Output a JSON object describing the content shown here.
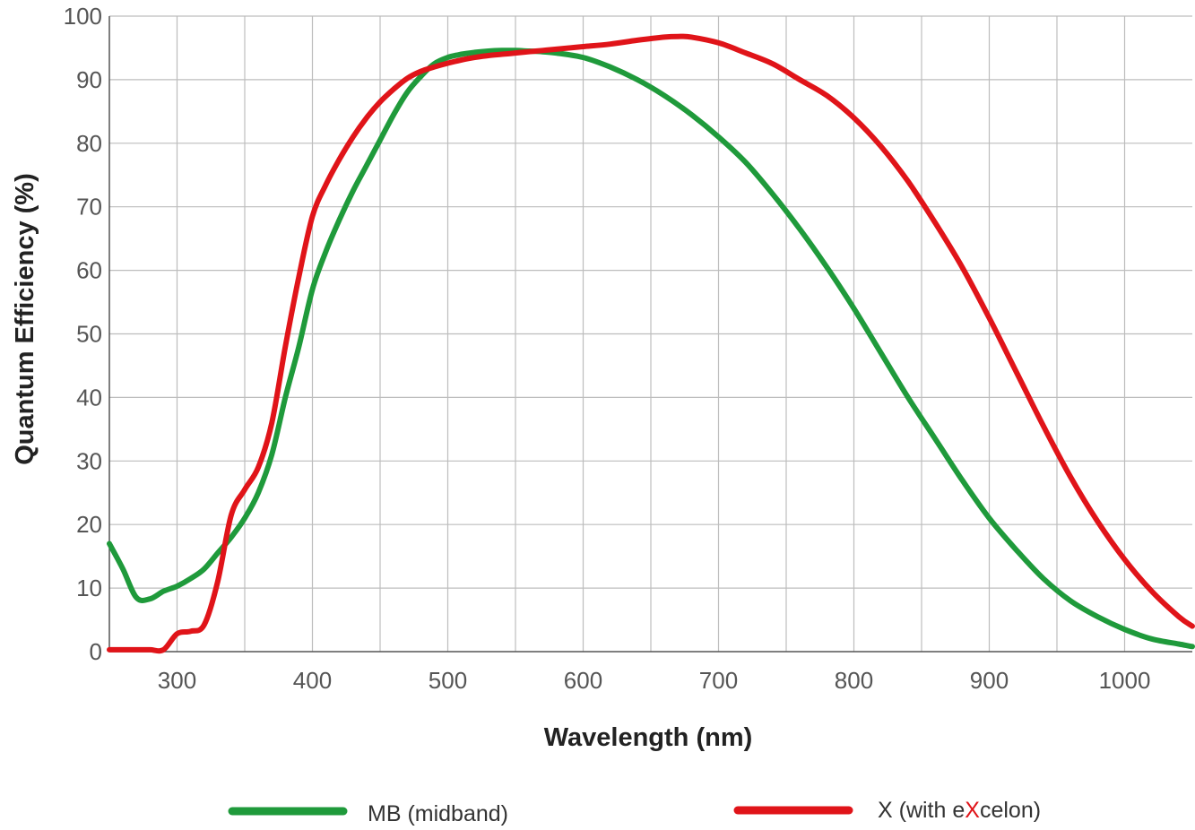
{
  "chart_data": {
    "type": "line",
    "xlabel": "Wavelength (nm)",
    "ylabel": "Quantum Efficiency  (%)",
    "xlim": [
      250,
      1050
    ],
    "ylim": [
      0,
      100
    ],
    "x_ticks": [
      300,
      400,
      500,
      600,
      700,
      800,
      900,
      1000
    ],
    "y_ticks": [
      0,
      10,
      20,
      30,
      40,
      50,
      60,
      70,
      80,
      90,
      100
    ],
    "x_grid_step": 50,
    "y_grid_step": 10,
    "grid": true,
    "legend_position": "bottom",
    "series": [
      {
        "name": "MB (midband)",
        "color": "#1f9a3b",
        "x": [
          250,
          260,
          270,
          280,
          290,
          300,
          310,
          320,
          330,
          340,
          350,
          360,
          370,
          380,
          390,
          400,
          410,
          420,
          430,
          440,
          450,
          460,
          470,
          480,
          490,
          500,
          510,
          520,
          530,
          540,
          550,
          560,
          570,
          580,
          600,
          620,
          640,
          660,
          680,
          700,
          720,
          740,
          760,
          780,
          800,
          820,
          840,
          860,
          880,
          900,
          920,
          940,
          960,
          980,
          1000,
          1020,
          1040,
          1050
        ],
        "y": [
          17,
          13,
          8.5,
          8.3,
          9.5,
          10.3,
          11.5,
          13,
          15.5,
          18,
          21,
          25,
          31,
          40,
          48,
          57,
          63,
          68,
          72.5,
          76.5,
          80.5,
          84.5,
          88,
          90.5,
          92.5,
          93.5,
          94,
          94.3,
          94.5,
          94.6,
          94.6,
          94.5,
          94.4,
          94.2,
          93.5,
          92,
          90,
          87.5,
          84.5,
          81,
          77,
          72,
          66.5,
          60.5,
          54,
          47,
          40,
          33.5,
          27,
          21,
          16,
          11.5,
          8,
          5.5,
          3.5,
          2,
          1.2,
          0.8
        ]
      },
      {
        "name": "X (with eXcelon)",
        "color": "#e01419",
        "x": [
          250,
          260,
          270,
          280,
          290,
          300,
          310,
          320,
          330,
          340,
          350,
          360,
          370,
          380,
          390,
          400,
          410,
          420,
          430,
          440,
          450,
          460,
          470,
          480,
          490,
          500,
          510,
          520,
          530,
          540,
          550,
          560,
          570,
          580,
          600,
          620,
          640,
          660,
          670,
          680,
          700,
          720,
          740,
          760,
          780,
          800,
          820,
          840,
          860,
          880,
          900,
          920,
          940,
          960,
          980,
          1000,
          1020,
          1040,
          1050
        ],
        "y": [
          0.3,
          0.3,
          0.3,
          0.3,
          0.3,
          2.8,
          3.2,
          4.2,
          11,
          21.5,
          25.5,
          29,
          36,
          48,
          59,
          68.5,
          73.5,
          77.5,
          81,
          84,
          86.5,
          88.5,
          90.2,
          91.3,
          92,
          92.6,
          93.1,
          93.5,
          93.8,
          94,
          94.2,
          94.4,
          94.6,
          94.8,
          95.2,
          95.6,
          96.2,
          96.7,
          96.8,
          96.7,
          95.8,
          94.2,
          92.5,
          90,
          87.5,
          84,
          79.5,
          74,
          67.5,
          60.5,
          52.5,
          44,
          35.5,
          27.5,
          20.5,
          14.5,
          9.5,
          5.5,
          4
        ]
      }
    ]
  }
}
